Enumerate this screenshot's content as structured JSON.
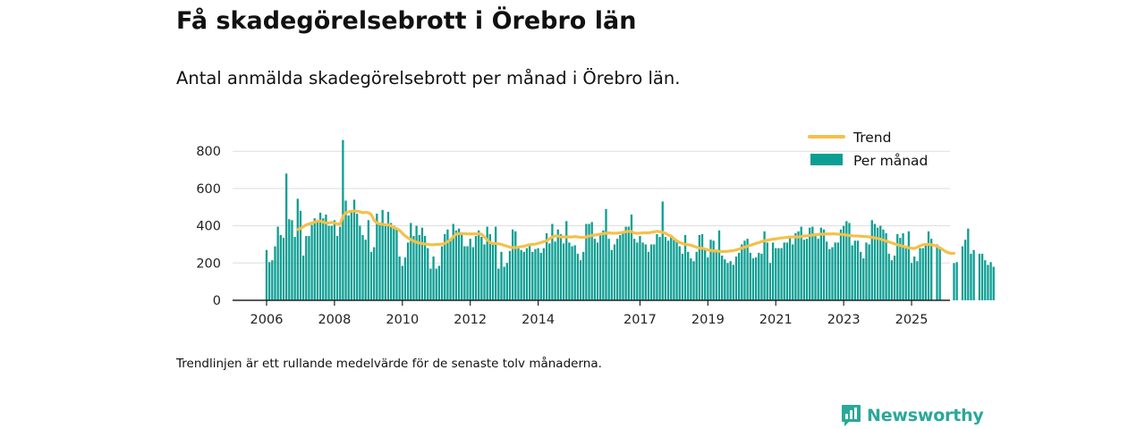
{
  "header": {
    "title": "Få skadegörelsebrott i Örebro län",
    "subtitle": "Antal anmälda skadegörelsebrott per månad i Örebro län."
  },
  "footnote": "Trendlinjen är ett rullande medelvärde för de senaste tolv månaderna.",
  "brand": {
    "name": "Newsworthy",
    "color": "#2aa89a",
    "icon": "newsworthy-logo-icon"
  },
  "chart_data": {
    "type": "bar",
    "title": "Få skadegörelsebrott i Örebro län",
    "subtitle": "Antal anmälda skadegörelsebrott per månad i Örebro län.",
    "x_start": "2006-01",
    "x_ticks": [
      "2006",
      "2008",
      "2010",
      "2012",
      "2014",
      "2017",
      "2019",
      "2021",
      "2023",
      "2025"
    ],
    "y_ticks": [
      0,
      200,
      400,
      600,
      800
    ],
    "ylim": [
      0,
      880
    ],
    "grid": true,
    "legend": {
      "position": "top-right",
      "entries": [
        "Trend",
        "Per månad"
      ]
    },
    "colors": {
      "bars": "#0d9e93",
      "trend": "#f5c04a",
      "grid": "#dddddd",
      "axis": "#222222"
    },
    "series": [
      {
        "name": "Per månad",
        "type": "bar",
        "values": [
          270,
          205,
          215,
          290,
          395,
          350,
          335,
          680,
          435,
          430,
          340,
          545,
          480,
          240,
          345,
          345,
          405,
          440,
          420,
          470,
          440,
          460,
          400,
          400,
          430,
          345,
          395,
          860,
          535,
          455,
          475,
          540,
          465,
          400,
          350,
          325,
          430,
          260,
          285,
          465,
          405,
          485,
          410,
          475,
          415,
          400,
          390,
          235,
          185,
          230,
          310,
          415,
          345,
          400,
          350,
          390,
          345,
          280,
          170,
          235,
          170,
          185,
          290,
          355,
          380,
          330,
          410,
          375,
          385,
          350,
          290,
          290,
          330,
          285,
          345,
          375,
          340,
          300,
          395,
          355,
          310,
          395,
          170,
          260,
          180,
          200,
          265,
          380,
          370,
          290,
          270,
          260,
          280,
          300,
          260,
          275,
          280,
          255,
          280,
          360,
          305,
          410,
          315,
          380,
          355,
          305,
          425,
          310,
          290,
          295,
          250,
          215,
          260,
          410,
          410,
          420,
          330,
          310,
          360,
          375,
          490,
          330,
          270,
          300,
          330,
          350,
          365,
          395,
          395,
          460,
          330,
          310,
          345,
          310,
          300,
          260,
          300,
          300,
          355,
          340,
          530,
          340,
          320,
          340,
          330,
          315,
          290,
          250,
          350,
          260,
          225,
          210,
          260,
          350,
          355,
          280,
          230,
          325,
          320,
          265,
          375,
          240,
          220,
          200,
          210,
          190,
          235,
          255,
          300,
          320,
          330,
          255,
          225,
          230,
          255,
          250,
          370,
          310,
          200,
          310,
          280,
          280,
          280,
          310,
          310,
          335,
          300,
          360,
          370,
          395,
          325,
          330,
          390,
          395,
          360,
          330,
          390,
          380,
          315,
          275,
          285,
          310,
          310,
          380,
          400,
          425,
          415,
          295,
          320,
          320,
          260,
          225,
          310,
          300,
          430,
          410,
          390,
          400,
          380,
          360,
          250,
          215,
          240,
          355,
          335,
          360,
          280,
          370,
          200,
          235,
          210,
          280,
          280,
          300,
          370,
          330,
          0,
          300,
          285,
          0,
          0,
          0,
          0,
          200,
          205,
          0,
          290,
          325,
          385,
          250,
          270,
          0,
          250,
          250,
          215,
          190,
          205,
          180
        ]
      },
      {
        "name": "Trend",
        "type": "line",
        "values": [
          null,
          null,
          null,
          null,
          null,
          null,
          null,
          null,
          null,
          null,
          null,
          380,
          385,
          395,
          405,
          410,
          415,
          420,
          425,
          425,
          420,
          415,
          415,
          418,
          415,
          410,
          408,
          450,
          470,
          475,
          478,
          480,
          478,
          475,
          470,
          472,
          470,
          460,
          430,
          415,
          410,
          408,
          405,
          405,
          400,
          390,
          385,
          375,
          360,
          345,
          335,
          325,
          318,
          312,
          308,
          305,
          302,
          300,
          298,
          298,
          300,
          300,
          302,
          305,
          315,
          325,
          340,
          355,
          358,
          358,
          358,
          356,
          356,
          356,
          356,
          356,
          355,
          340,
          325,
          310,
          305,
          305,
          303,
          300,
          295,
          290,
          285,
          283,
          283,
          285,
          288,
          290,
          295,
          298,
          300,
          302,
          305,
          310,
          315,
          320,
          330,
          340,
          345,
          345,
          340,
          340,
          340,
          340,
          340,
          342,
          340,
          338,
          338,
          340,
          345,
          348,
          350,
          352,
          355,
          358,
          360,
          362,
          360,
          360,
          360,
          362,
          365,
          368,
          370,
          370,
          360,
          360,
          360,
          362,
          362,
          362,
          365,
          367,
          370,
          368,
          365,
          360,
          350,
          345,
          330,
          320,
          310,
          305,
          300,
          298,
          296,
          290,
          285,
          280,
          280,
          275,
          270,
          268,
          265,
          265,
          263,
          262,
          262,
          263,
          265,
          267,
          270,
          275,
          280,
          285,
          290,
          295,
          300,
          305,
          310,
          315,
          320,
          322,
          325,
          328,
          330,
          332,
          335,
          336,
          338,
          340,
          340,
          340,
          340,
          342,
          345,
          346,
          348,
          350,
          352,
          353,
          355,
          355,
          356,
          356,
          357,
          356,
          355,
          354,
          352,
          350,
          348,
          346,
          345,
          345,
          344,
          343,
          342,
          340,
          338,
          335,
          332,
          328,
          323,
          318,
          313,
          308,
          303,
          298,
          294,
          290,
          286,
          282,
          280,
          278,
          285,
          292,
          298,
          300,
          300,
          298,
          295,
          290,
          282,
          272,
          262,
          255,
          252,
          252
        ]
      }
    ]
  }
}
